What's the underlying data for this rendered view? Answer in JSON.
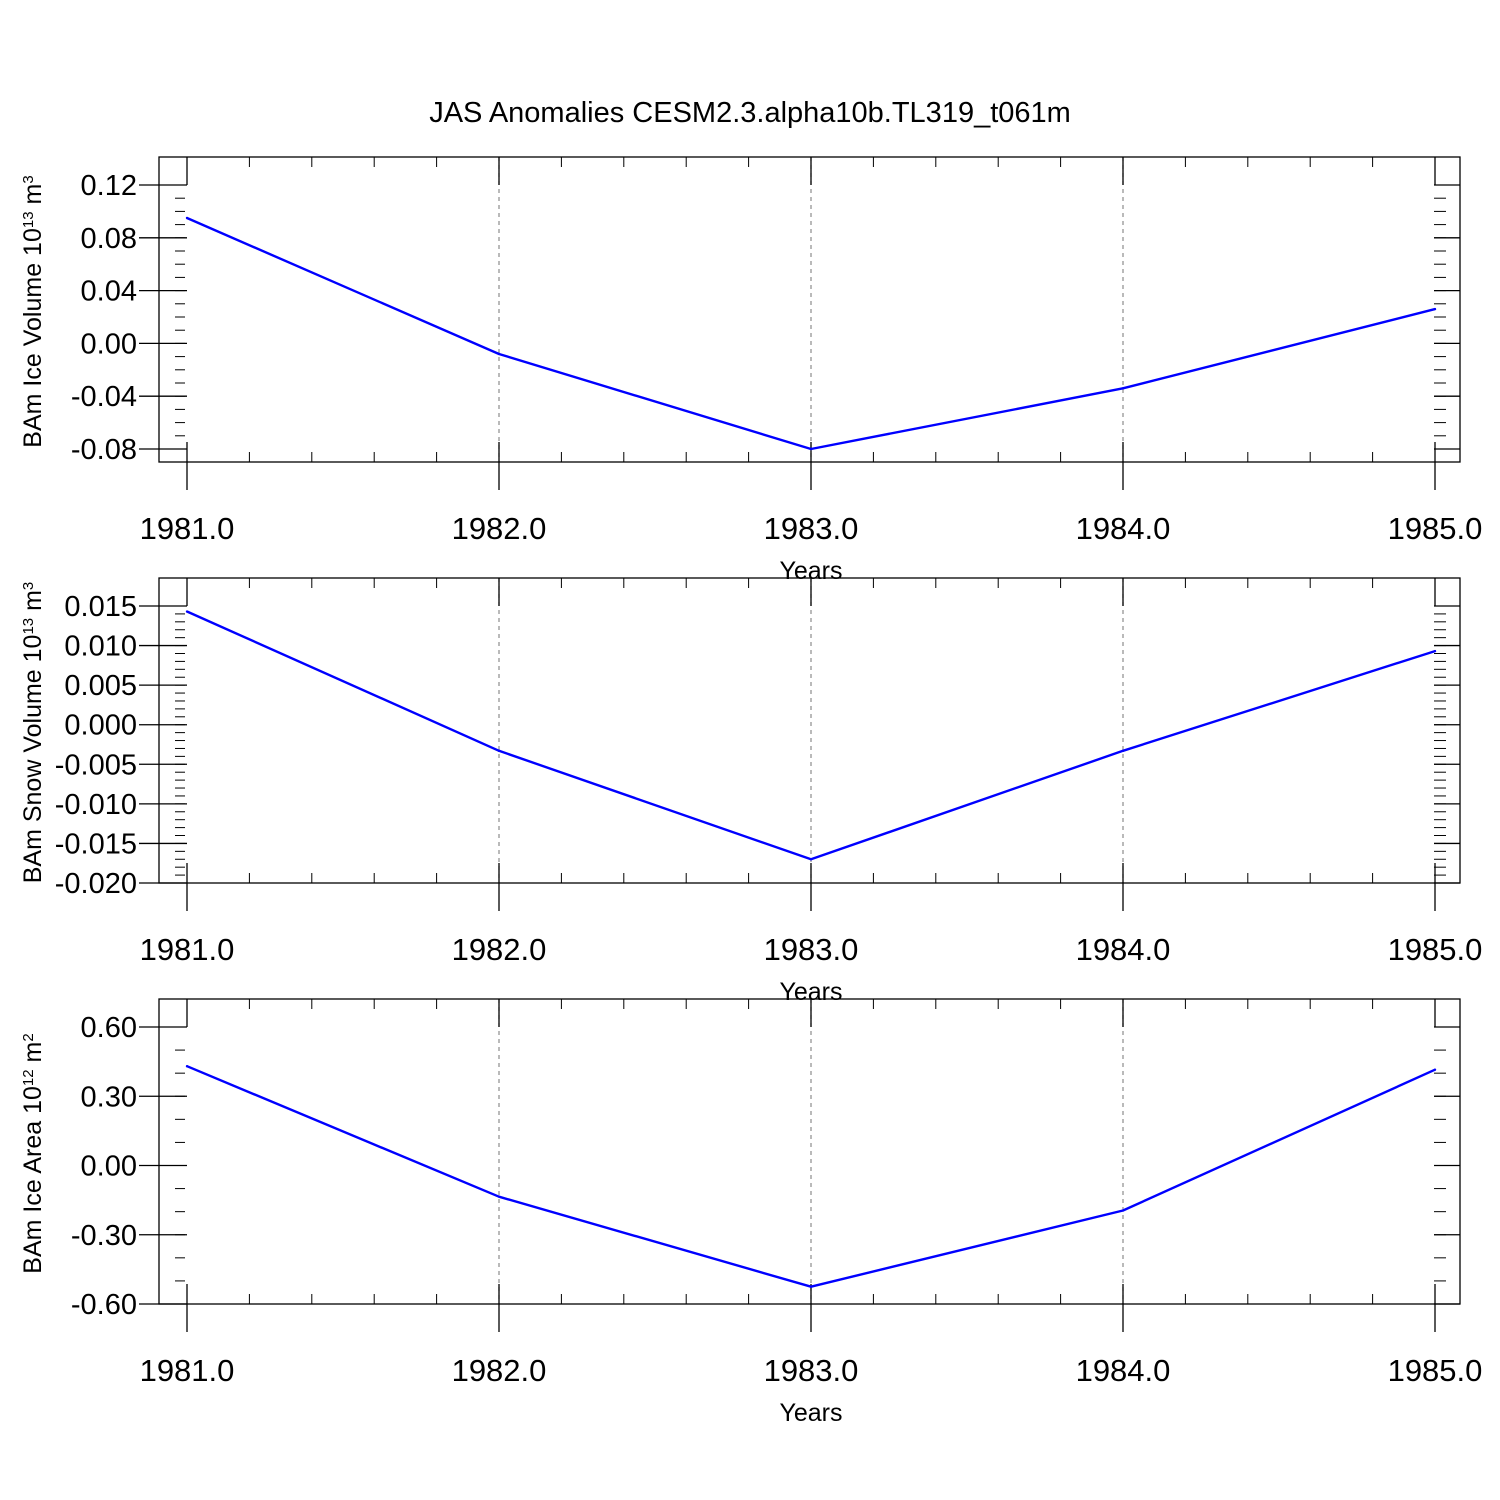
{
  "figure": {
    "title": "JAS Anomalies CESM2.3.alpha10b.TL319_t061m"
  },
  "colors": {
    "line": "#0000ff",
    "axis": "#000000",
    "grid": "#8c8c8c"
  },
  "chart_data": [
    {
      "type": "line",
      "ylabel": {
        "main": "BAm Ice Volume 10",
        "exp": "13",
        "unit": " m",
        "unit_exp": "3"
      },
      "xlabel": "Years",
      "xlim": [
        1981.0,
        1985.0
      ],
      "ylim": [
        -0.09,
        0.12
      ],
      "x_ticks": [
        1981.0,
        1982.0,
        1983.0,
        1984.0,
        1985.0
      ],
      "x_tick_labels": [
        "1981.0",
        "1982.0",
        "1983.0",
        "1984.0",
        "1985.0"
      ],
      "y_ticks": [
        0.12,
        0.08,
        0.04,
        0.0,
        -0.04,
        -0.08
      ],
      "y_tick_labels": [
        "0.12",
        "0.08",
        "0.04",
        "0.00",
        "-0.04",
        "-0.08"
      ],
      "y_minor_step": 0.01,
      "grid": "vertical dashed at major x ticks",
      "series": [
        {
          "x": [
            1981,
            1982,
            1983,
            1984,
            1985
          ],
          "y": [
            0.095,
            -0.008,
            -0.08,
            -0.034,
            0.026
          ]
        }
      ]
    },
    {
      "type": "line",
      "ylabel": {
        "main": "BAm Snow Volume 10",
        "exp": "13",
        "unit": " m",
        "unit_exp": "3"
      },
      "xlabel": "Years",
      "xlim": [
        1981.0,
        1985.0
      ],
      "ylim": [
        -0.02,
        0.015
      ],
      "x_ticks": [
        1981.0,
        1982.0,
        1983.0,
        1984.0,
        1985.0
      ],
      "x_tick_labels": [
        "1981.0",
        "1982.0",
        "1983.0",
        "1984.0",
        "1985.0"
      ],
      "y_ticks": [
        0.015,
        0.01,
        0.005,
        0.0,
        -0.005,
        -0.01,
        -0.015,
        -0.02
      ],
      "y_tick_labels": [
        "0.015",
        "0.010",
        "0.005",
        "0.000",
        "-0.005",
        "-0.010",
        "-0.015",
        "-0.020"
      ],
      "y_minor_step": 0.001,
      "grid": "vertical dashed at major x ticks",
      "series": [
        {
          "x": [
            1981,
            1982,
            1983,
            1984,
            1985
          ],
          "y": [
            0.0143,
            -0.0033,
            -0.017,
            -0.0033,
            0.0093
          ]
        }
      ]
    },
    {
      "type": "line",
      "ylabel": {
        "main": "BAm Ice Area 10",
        "exp": "12",
        "unit": " m",
        "unit_exp": "2"
      },
      "xlabel": "Years",
      "xlim": [
        1981.0,
        1985.0
      ],
      "ylim": [
        -0.6,
        0.6
      ],
      "x_ticks": [
        1981.0,
        1982.0,
        1983.0,
        1984.0,
        1985.0
      ],
      "x_tick_labels": [
        "1981.0",
        "1982.0",
        "1983.0",
        "1984.0",
        "1985.0"
      ],
      "y_ticks": [
        0.6,
        0.3,
        0.0,
        -0.3,
        -0.6
      ],
      "y_tick_labels": [
        "0.60",
        "0.30",
        "0.00",
        "-0.30",
        "-0.60"
      ],
      "y_minor_step": 0.1,
      "grid": "vertical dashed at major x ticks",
      "series": [
        {
          "x": [
            1981,
            1982,
            1983,
            1984,
            1985
          ],
          "y": [
            0.43,
            -0.135,
            -0.525,
            -0.195,
            0.415
          ]
        }
      ]
    }
  ]
}
